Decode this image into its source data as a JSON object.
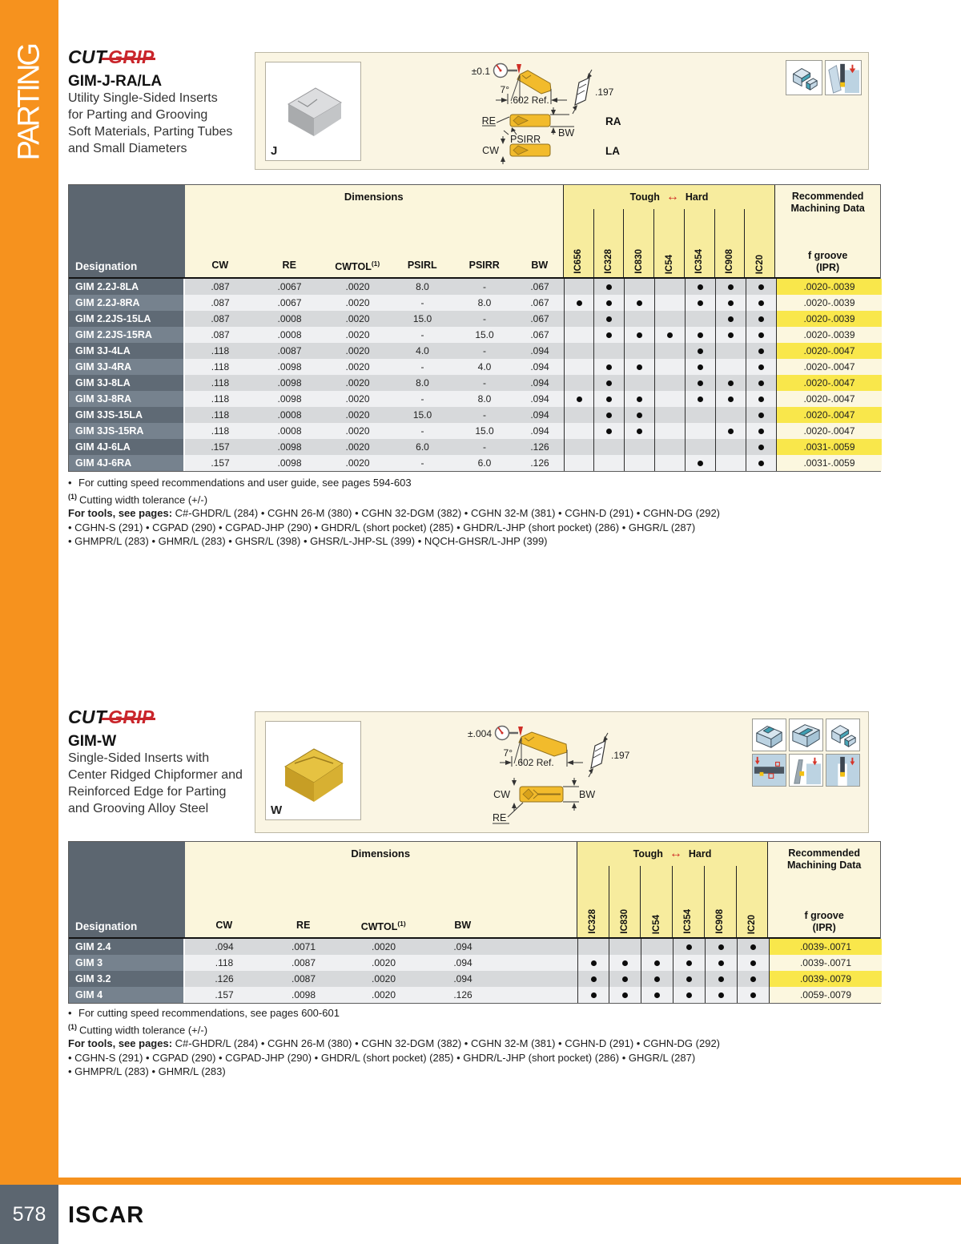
{
  "page": {
    "sidebar_label": "PARTING",
    "page_number": "578",
    "brand": "ISCAR"
  },
  "colors": {
    "accent_orange": "#F6921E",
    "slate": "#5C6670",
    "grade_yellow": "#F7EC9E",
    "cream": "#FBF6DC",
    "highlight_yellow": "#F9E74B",
    "logo_red": "#C9252B",
    "arrow_red": "#CF2E26"
  },
  "sections": [
    {
      "logo_cut": "CUT",
      "logo_grip": "GRIP",
      "title": "GIM-J-RA/LA",
      "description": "Utility Single-Sided Inserts\nfor Parting and Grooving\nSoft Materials, Parting Tubes\nand Small Diameters",
      "photo_letter": "J",
      "diagram": {
        "tolerance": "±0.1",
        "angle": "7°",
        "ref_dim": ".602 Ref.",
        "thickness": ".197",
        "re_label": "RE",
        "psirr_label": "PSIRR",
        "bw_label": "BW",
        "cw_label": "CW",
        "variant_top": "RA",
        "variant_bottom": "LA"
      },
      "table": {
        "designation_header": "Designation",
        "dimensions_header": "Dimensions",
        "tough_label": "Tough",
        "hard_label": "Hard",
        "recommended_line1": "Recommended",
        "recommended_line2": "Machining Data",
        "fgroove_label": "f groove",
        "ipr_label": "(IPR)",
        "dim_cols": [
          "CW",
          "RE",
          "CWTOL",
          "PSIRL",
          "PSIRR",
          "BW"
        ],
        "cwtol_sup": "(1)",
        "grade_cols": [
          "IC656",
          "IC328",
          "IC830",
          "IC54",
          "IC354",
          "IC908",
          "IC20"
        ],
        "rows": [
          {
            "designation": "GIM 2.2J-8LA",
            "dims": [
              ".087",
              ".0067",
              ".0020",
              "8.0",
              "-",
              ".067"
            ],
            "grades": [
              0,
              1,
              0,
              0,
              1,
              1,
              1
            ],
            "fgroove": ".0020-.0039"
          },
          {
            "designation": "GIM 2.2J-8RA",
            "dims": [
              ".087",
              ".0067",
              ".0020",
              "-",
              "8.0",
              ".067"
            ],
            "grades": [
              1,
              1,
              1,
              0,
              1,
              1,
              1
            ],
            "fgroove": ".0020-.0039"
          },
          {
            "designation": "GIM 2.2JS-15LA",
            "dims": [
              ".087",
              ".0008",
              ".0020",
              "15.0",
              "-",
              ".067"
            ],
            "grades": [
              0,
              1,
              0,
              0,
              0,
              1,
              1
            ],
            "fgroove": ".0020-.0039"
          },
          {
            "designation": "GIM 2.2JS-15RA",
            "dims": [
              ".087",
              ".0008",
              ".0020",
              "-",
              "15.0",
              ".067"
            ],
            "grades": [
              0,
              1,
              1,
              1,
              1,
              1,
              1
            ],
            "fgroove": ".0020-.0039"
          },
          {
            "designation": "GIM 3J-4LA",
            "dims": [
              ".118",
              ".0087",
              ".0020",
              "4.0",
              "-",
              ".094"
            ],
            "grades": [
              0,
              0,
              0,
              0,
              1,
              0,
              1
            ],
            "fgroove": ".0020-.0047"
          },
          {
            "designation": "GIM 3J-4RA",
            "dims": [
              ".118",
              ".0098",
              ".0020",
              "-",
              "4.0",
              ".094"
            ],
            "grades": [
              0,
              1,
              1,
              0,
              1,
              0,
              1
            ],
            "fgroove": ".0020-.0047"
          },
          {
            "designation": "GIM 3J-8LA",
            "dims": [
              ".118",
              ".0098",
              ".0020",
              "8.0",
              "-",
              ".094"
            ],
            "grades": [
              0,
              1,
              0,
              0,
              1,
              1,
              1
            ],
            "fgroove": ".0020-.0047"
          },
          {
            "designation": "GIM 3J-8RA",
            "dims": [
              ".118",
              ".0098",
              ".0020",
              "-",
              "8.0",
              ".094"
            ],
            "grades": [
              1,
              1,
              1,
              0,
              1,
              1,
              1
            ],
            "fgroove": ".0020-.0047"
          },
          {
            "designation": "GIM 3JS-15LA",
            "dims": [
              ".118",
              ".0008",
              ".0020",
              "15.0",
              "-",
              ".094"
            ],
            "grades": [
              0,
              1,
              1,
              0,
              0,
              0,
              1
            ],
            "fgroove": ".0020-.0047"
          },
          {
            "designation": "GIM 3JS-15RA",
            "dims": [
              ".118",
              ".0008",
              ".0020",
              "-",
              "15.0",
              ".094"
            ],
            "grades": [
              0,
              1,
              1,
              0,
              0,
              1,
              1
            ],
            "fgroove": ".0020-.0047"
          },
          {
            "designation": "GIM 4J-6LA",
            "dims": [
              ".157",
              ".0098",
              ".0020",
              "6.0",
              "-",
              ".126"
            ],
            "grades": [
              0,
              0,
              0,
              0,
              0,
              0,
              1
            ],
            "fgroove": ".0031-.0059"
          },
          {
            "designation": "GIM 4J-6RA",
            "dims": [
              ".157",
              ".0098",
              ".0020",
              "-",
              "6.0",
              ".126"
            ],
            "grades": [
              0,
              0,
              0,
              0,
              1,
              0,
              1
            ],
            "fgroove": ".0031-.0059"
          }
        ]
      },
      "notes": {
        "speed_note": "For cutting speed recommendations and user guide, see pages 594-603",
        "tolerance_sup": "(1)",
        "tolerance_note": "Cutting width tolerance (+/-)",
        "tools_label": "For tools, see pages:",
        "tools_lines": [
          "C#-GHDR/L (284) • CGHN 26-M (380) • CGHN 32-DGM (382) • CGHN 32-M (381) • CGHN-D (291) • CGHN-DG (292)",
          "• CGHN-S (291) • CGPAD (290) • CGPAD-JHP (290) • GHDR/L (short pocket) (285) • GHDR/L-JHP (short pocket) (286) • GHGR/L (287)",
          "• GHMPR/L (283) • GHMR/L (283) • GHSR/L (398) • GHSR/L-JHP-SL (399) • NQCH-GHSR/L-JHP (399)"
        ]
      }
    },
    {
      "logo_cut": "CUT",
      "logo_grip": "GRIP",
      "title": "GIM-W",
      "description": "Single-Sided Inserts with\nCenter Ridged Chipformer and\nReinforced Edge for Parting\nand Grooving Alloy Steel",
      "photo_letter": "W",
      "diagram": {
        "tolerance": "±.004",
        "angle": "7°",
        "ref_dim": ".602 Ref.",
        "thickness": ".197",
        "cw_label": "CW",
        "bw_label": "BW",
        "re_label": "RE"
      },
      "table": {
        "designation_header": "Designation",
        "dimensions_header": "Dimensions",
        "tough_label": "Tough",
        "hard_label": "Hard",
        "recommended_line1": "Recommended",
        "recommended_line2": "Machining Data",
        "fgroove_label": "f groove",
        "ipr_label": "(IPR)",
        "dim_cols": [
          "CW",
          "RE",
          "CWTOL",
          "BW"
        ],
        "cwtol_sup": "(1)",
        "grade_cols": [
          "IC328",
          "IC830",
          "IC54",
          "IC354",
          "IC908",
          "IC20"
        ],
        "rows": [
          {
            "designation": "GIM 2.4",
            "dims": [
              ".094",
              ".0071",
              ".0020",
              ".094"
            ],
            "grades": [
              0,
              0,
              0,
              1,
              1,
              1
            ],
            "fgroove": ".0039-.0071"
          },
          {
            "designation": "GIM 3",
            "dims": [
              ".118",
              ".0087",
              ".0020",
              ".094"
            ],
            "grades": [
              1,
              1,
              1,
              1,
              1,
              1
            ],
            "fgroove": ".0039-.0071"
          },
          {
            "designation": "GIM 3.2",
            "dims": [
              ".126",
              ".0087",
              ".0020",
              ".094"
            ],
            "grades": [
              1,
              1,
              1,
              1,
              1,
              1
            ],
            "fgroove": ".0039-.0079"
          },
          {
            "designation": "GIM 4",
            "dims": [
              ".157",
              ".0098",
              ".0020",
              ".126"
            ],
            "grades": [
              1,
              1,
              1,
              1,
              1,
              1
            ],
            "fgroove": ".0059-.0079"
          }
        ]
      },
      "notes": {
        "speed_note": "For cutting speed recommendations, see pages 600-601",
        "tolerance_sup": "(1)",
        "tolerance_note": "Cutting width tolerance (+/-)",
        "tools_label": "For tools, see pages:",
        "tools_lines": [
          "C#-GHDR/L (284) • CGHN 26-M (380) • CGHN 32-DGM (382) • CGHN 32-M (381) • CGHN-D (291) • CGHN-DG (292)",
          "• CGHN-S (291) • CGPAD (290) • CGPAD-JHP (290) • GHDR/L (short pocket) (285) • GHDR/L-JHP (short pocket) (286) • GHGR/L (287)",
          "• GHMPR/L (283) • GHMR/L (283)"
        ]
      }
    }
  ]
}
